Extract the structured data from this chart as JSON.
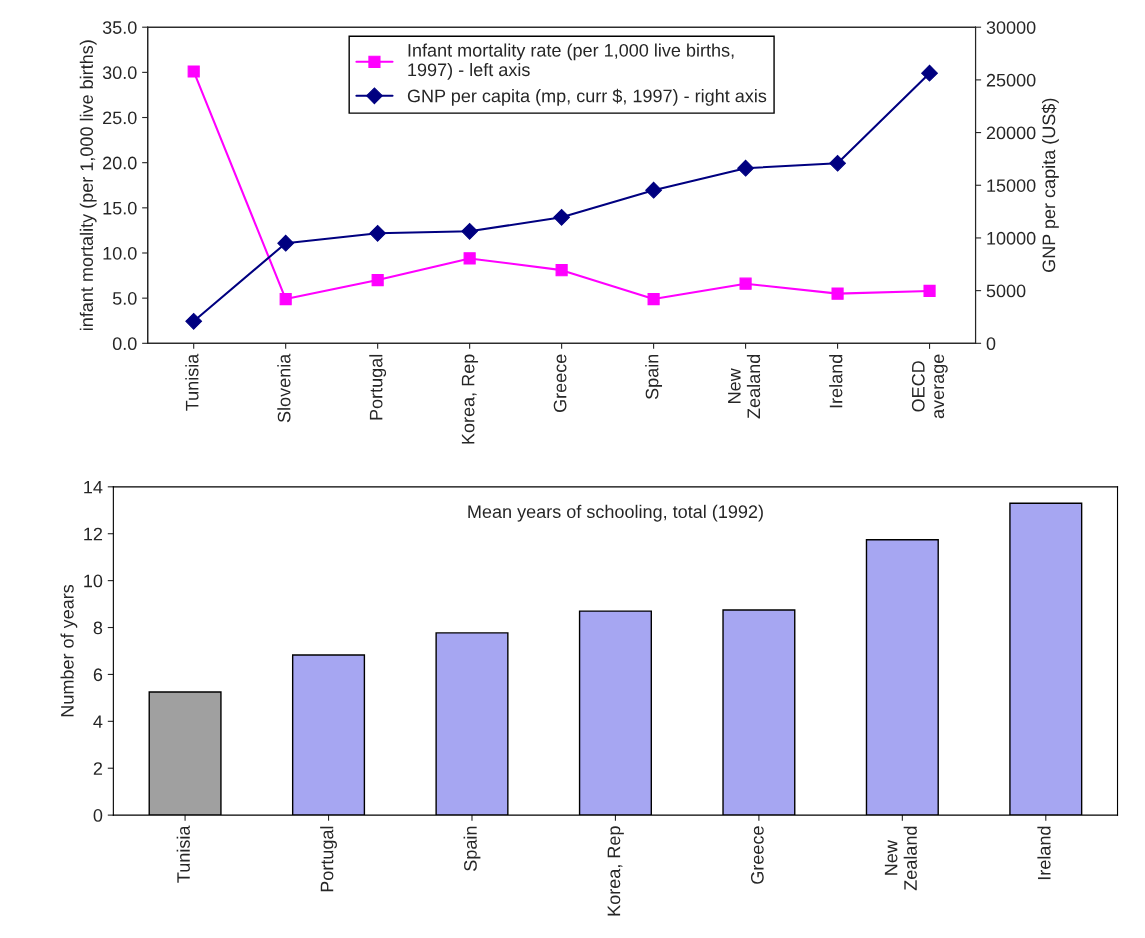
{
  "chart_data": [
    {
      "type": "line",
      "categories": [
        "Tunisia",
        "Slovenia",
        "Portugal",
        "Korea, Rep",
        "Greece",
        "Spain",
        "New\nZealand",
        "Ireland",
        "OECD\naverage"
      ],
      "ylabel": "infant mortality (per 1,000 live births)",
      "y2label": "GNP per capita (US$)",
      "ylim": [
        0,
        35
      ],
      "yticks": [
        {
          "value": 0,
          "label": "0.0"
        },
        {
          "value": 5,
          "label": "5.0"
        },
        {
          "value": 10,
          "label": "10.0"
        },
        {
          "value": 15,
          "label": "15.0"
        },
        {
          "value": 20,
          "label": "20.0"
        },
        {
          "value": 25,
          "label": "25.0"
        },
        {
          "value": 30,
          "label": "30.0"
        },
        {
          "value": 35,
          "label": "35.0"
        }
      ],
      "y2lim": [
        0,
        30000
      ],
      "y2ticks": [
        0,
        5000,
        10000,
        15000,
        20000,
        25000,
        30000
      ],
      "legend": "top",
      "grid": false,
      "series": [
        {
          "name": "Infant mortality rate (per 1,000 live births,\n1997) - left axis",
          "color": "#ff00ff",
          "marker": "square",
          "values": [
            30.1,
            4.9,
            7.0,
            9.4,
            8.1,
            4.9,
            6.6,
            5.5,
            5.8
          ]
        },
        {
          "name": "GNP per capita (mp, curr $, 1997) - right axis",
          "color": "#000080",
          "marker": "diamond",
          "axis": "y2",
          "values": [
            2090,
            9500,
            10440,
            10630,
            11960,
            14530,
            16620,
            17090,
            25640
          ]
        }
      ]
    },
    {
      "type": "bar",
      "title": "Mean years of schooling, total (1992)",
      "ylabel": "Number of years",
      "categories": [
        "Tunisia",
        "Portugal",
        "Spain",
        "Korea, Rep",
        "Greece",
        "New\nZealand",
        "Ireland"
      ],
      "values": [
        5.25,
        6.83,
        7.77,
        8.7,
        8.75,
        11.74,
        13.3
      ],
      "colors": [
        "#a0a0a0",
        "#9999ff",
        "#9999ff",
        "#9999ff",
        "#9999ff",
        "#9999ff",
        "#9999ff"
      ],
      "ylim": [
        0,
        14
      ],
      "yticks": [
        0,
        2,
        4,
        6,
        8,
        10,
        12,
        14
      ],
      "grid": false
    }
  ]
}
